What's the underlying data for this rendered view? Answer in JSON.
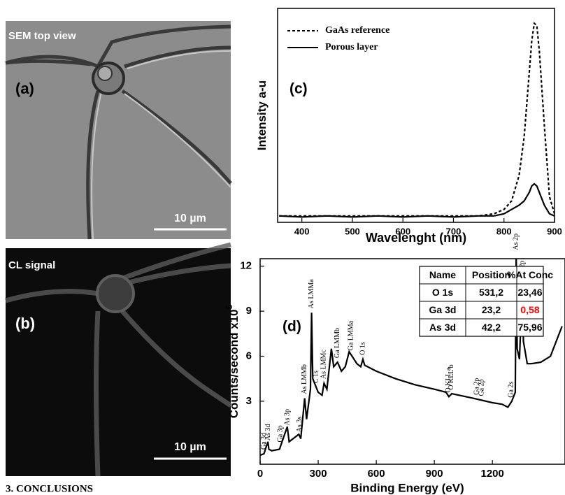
{
  "panels": {
    "a": {
      "label": "SEM top view",
      "tag": "(a)",
      "scale": "10 µm"
    },
    "b": {
      "label": "CL signal",
      "tag": "(b)",
      "scale": "10 µm"
    }
  },
  "section_heading": "3. CONCLUSIONS",
  "chart_data": [
    {
      "type": "line",
      "tag": "(c)",
      "x_label": "Wavelenght (nm)",
      "y_label": "Intensity a-u",
      "x": [
        355,
        400,
        450,
        500,
        550,
        600,
        650,
        700,
        750,
        780,
        800,
        815,
        830,
        840,
        850,
        855,
        860,
        865,
        870,
        880,
        890,
        900
      ],
      "xlim": [
        352,
        900
      ],
      "xticks": [
        400,
        500,
        600,
        700,
        800,
        900
      ],
      "ylim": [
        0,
        1
      ],
      "legend": "upper left",
      "series": [
        {
          "name": "GaAs reference",
          "color": "#000000",
          "dash": true,
          "values": [
            0.03,
            0.03,
            0.03,
            0.03,
            0.03,
            0.03,
            0.03,
            0.03,
            0.03,
            0.04,
            0.06,
            0.1,
            0.22,
            0.4,
            0.7,
            0.85,
            0.93,
            0.92,
            0.8,
            0.45,
            0.12,
            0.04
          ]
        },
        {
          "name": "Porous layer",
          "color": "#000000",
          "dash": false,
          "values": [
            0.03,
            0.025,
            0.03,
            0.025,
            0.03,
            0.025,
            0.03,
            0.025,
            0.03,
            0.03,
            0.04,
            0.06,
            0.08,
            0.1,
            0.14,
            0.17,
            0.18,
            0.17,
            0.14,
            0.08,
            0.04,
            0.03
          ]
        }
      ]
    },
    {
      "type": "line",
      "tag": "(d)",
      "x_label": "Binding Energy (eV)",
      "y_label": "Counts/second x10",
      "y_label_exponent": "5",
      "x": [
        0,
        20,
        40,
        45,
        60,
        100,
        140,
        150,
        200,
        210,
        230,
        240,
        260,
        266,
        272,
        300,
        320,
        330,
        345,
        368,
        380,
        400,
        420,
        440,
        460,
        480,
        500,
        520,
        531,
        540,
        600,
        700,
        800,
        900,
        960,
        975,
        990,
        1100,
        1200,
        1250,
        1280,
        1300,
        1318,
        1323,
        1328,
        1340,
        1355,
        1360,
        1380,
        1400,
        1450,
        1500,
        1560
      ],
      "xlim": [
        0,
        1575
      ],
      "xticks": [
        0,
        300,
        600,
        900,
        1200
      ],
      "ylim": [
        -1.2,
        12.5
      ],
      "yticks": [
        3,
        6,
        9,
        12
      ],
      "series": [
        {
          "color": "#000000",
          "dash": false,
          "values": [
            -0.6,
            -0.5,
            0.3,
            -0.2,
            -0.3,
            -0.2,
            1.3,
            0.3,
            0.8,
            0.5,
            3.2,
            1.8,
            3.8,
            8.9,
            4.5,
            3.6,
            3.4,
            4.2,
            3.8,
            6.5,
            5.3,
            5.6,
            5.0,
            5.3,
            6.3,
            5.9,
            5.5,
            5.3,
            5.8,
            5.4,
            5.0,
            4.5,
            4.1,
            3.8,
            3.6,
            3.3,
            3.5,
            3.2,
            2.9,
            2.8,
            2.6,
            3.0,
            3.6,
            12.8,
            6.5,
            5.8,
            11.0,
            7.0,
            5.5,
            5.5,
            5.6,
            6.0,
            8.0
          ]
        }
      ],
      "annotations": [
        {
          "label": "Ga 3d",
          "x": 20
        },
        {
          "label": "As 3d",
          "x": 42
        },
        {
          "label": "Ga 3p",
          "x": 105
        },
        {
          "label": "As 3p",
          "x": 142
        },
        {
          "label": "As 3s",
          "x": 205
        },
        {
          "label": "As LMMb",
          "x": 230
        },
        {
          "label": "As LMMa",
          "x": 266
        },
        {
          "label": "C 1s",
          "x": 290
        },
        {
          "label": "As LMMc",
          "x": 330
        },
        {
          "label": "Ga LMMb",
          "x": 400
        },
        {
          "label": "Ga LMMa",
          "x": 470
        },
        {
          "label": "O 1s",
          "x": 531
        },
        {
          "label": "O KLL a",
          "x": 975
        },
        {
          "label": "O KLL b",
          "x": 988
        },
        {
          "label": "Ga 2p",
          "x": 1120
        },
        {
          "label": "Ga 2p",
          "x": 1146
        },
        {
          "label": "Ga 2s",
          "x": 1298
        },
        {
          "label": "As 2p",
          "x": 1323
        },
        {
          "label": "As 2p",
          "x": 1355
        }
      ],
      "table": {
        "header": [
          "Name",
          "Position",
          "%At Conc"
        ],
        "rows": [
          [
            "O 1s",
            "531,2",
            "23,46"
          ],
          [
            "Ga 3d",
            "23,2",
            {
              "text": "0,58",
              "color": "#ff0000"
            }
          ],
          [
            "As 3d",
            "42,2",
            "75,96"
          ]
        ]
      }
    }
  ]
}
